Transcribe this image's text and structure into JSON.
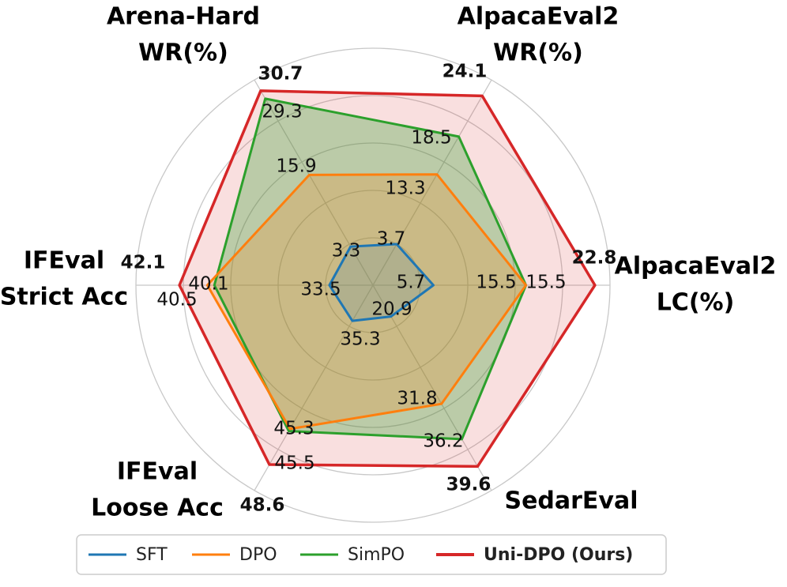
{
  "chart_data": {
    "type": "radar",
    "axes": [
      {
        "label_lines": [
          "Arena-Hard",
          "WR(%)"
        ]
      },
      {
        "label_lines": [
          "AlpacaEval2",
          "WR(%)"
        ]
      },
      {
        "label_lines": [
          "AlpacaEval2",
          "LC(%)"
        ]
      },
      {
        "label_lines": [
          "SedarEval"
        ]
      },
      {
        "label_lines": [
          "IFEval",
          "Loose Acc"
        ]
      },
      {
        "label_lines": [
          "IFEval",
          "Strict Acc"
        ]
      }
    ],
    "series": [
      {
        "name": "SFT",
        "color": "#1f77b4",
        "values": [
          3.3,
          3.7,
          5.7,
          20.9,
          35.3,
          33.5
        ],
        "value_labels": [
          "3.3",
          "3.7",
          "5.7",
          "20.9",
          "35.3",
          "33.5"
        ]
      },
      {
        "name": "DPO",
        "color": "#ff7f0e",
        "values": [
          15.9,
          13.3,
          15.5,
          31.8,
          45.3,
          40.5
        ],
        "value_labels": [
          "15.9",
          "13.3",
          "15.5",
          "31.8",
          "45.3",
          "40.5"
        ]
      },
      {
        "name": "SimPO",
        "color": "#2ca02c",
        "values": [
          29.3,
          18.5,
          15.5,
          36.2,
          45.5,
          40.1
        ],
        "value_labels": [
          "29.3",
          "18.5",
          "15.5",
          "36.2",
          "45.5",
          "40.1"
        ]
      },
      {
        "name": "Uni-DPO (Ours)",
        "color": "#d62728",
        "bold": true,
        "values": [
          30.7,
          24.1,
          22.8,
          39.6,
          48.6,
          42.1
        ],
        "value_labels": [
          "30.7",
          "24.1",
          "22.8",
          "39.6",
          "48.6",
          "42.1"
        ]
      }
    ],
    "grid": true,
    "legend_position": "bottom"
  }
}
